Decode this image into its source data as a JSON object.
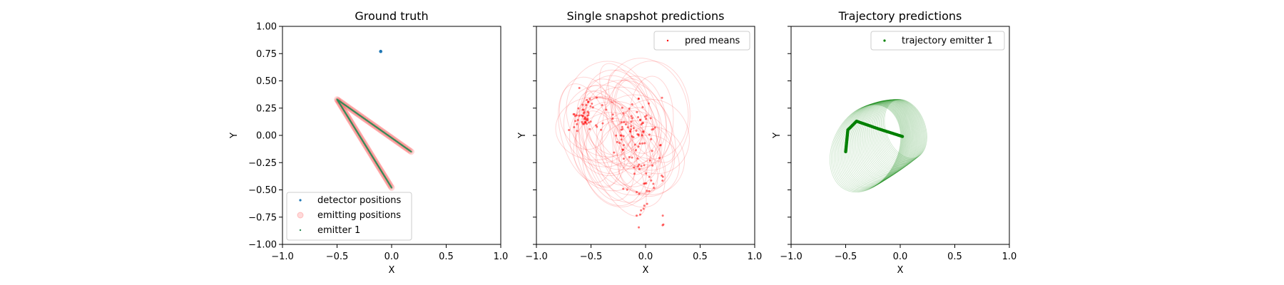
{
  "colors": {
    "detector": "#1f77b4",
    "emitting": "#ff6b6b",
    "emitter1_gt": "#2e8b57",
    "pred": "#ff0000",
    "trajectory": "#008000"
  },
  "chart_data": [
    {
      "type": "scatter",
      "title": "Ground truth",
      "xlabel": "X",
      "ylabel": "Y",
      "xlim": [
        -1.0,
        1.0
      ],
      "ylim": [
        -1.0,
        1.0
      ],
      "xticks": [
        "−1.0",
        "−0.5",
        "0.0",
        "0.5",
        "1.0"
      ],
      "yticks": [
        "1.00",
        "0.75",
        "0.50",
        "0.25",
        "0.00",
        "−0.25",
        "−0.50",
        "−0.75",
        "−1.00"
      ],
      "legend_position": "lower-left",
      "series": [
        {
          "name": "detector positions",
          "points": [
            [
              -0.1,
              0.77
            ]
          ]
        },
        {
          "name": "emitting positions",
          "path": [
            [
              0.0,
              -0.48
            ],
            [
              -0.5,
              0.33
            ],
            [
              0.18,
              -0.15
            ]
          ]
        },
        {
          "name": "emitter 1",
          "path": [
            [
              0.0,
              -0.48
            ],
            [
              -0.5,
              0.33
            ],
            [
              0.18,
              -0.15
            ]
          ]
        }
      ]
    },
    {
      "type": "scatter",
      "title": "Single snapshot predictions",
      "xlabel": "X",
      "ylabel": "Y",
      "xlim": [
        -1.0,
        1.0
      ],
      "ylim": [
        -1.0,
        1.0
      ],
      "xticks": [
        "−1.0",
        "−0.5",
        "0.0",
        "0.5",
        "1.0"
      ],
      "legend_position": "upper-right",
      "series": [
        {
          "name": "pred means",
          "clusters": [
            {
              "center": [
                -0.57,
                0.17
              ],
              "spread": [
                0.07,
                0.08
              ],
              "count": 55
            },
            {
              "center": [
                -0.1,
                0.05
              ],
              "spread": [
                0.13,
                0.16
              ],
              "count": 70
            },
            {
              "center": [
                0.0,
                -0.35
              ],
              "spread": [
                0.09,
                0.2
              ],
              "count": 45
            }
          ]
        }
      ],
      "ellipse_count": 40
    },
    {
      "type": "scatter",
      "title": "Trajectory predictions",
      "xlabel": "X",
      "ylabel": "Y",
      "xlim": [
        -1.0,
        1.0
      ],
      "ylim": [
        -1.0,
        1.0
      ],
      "xticks": [
        "−1.0",
        "−0.5",
        "0.0",
        "0.5",
        "1.0"
      ],
      "legend_position": "upper-right",
      "series": [
        {
          "name": "trajectory emitter 1",
          "path": [
            [
              -0.5,
              -0.15
            ],
            [
              -0.48,
              0.05
            ],
            [
              -0.4,
              0.13
            ],
            [
              -0.2,
              0.06
            ],
            [
              0.02,
              -0.01
            ]
          ]
        }
      ],
      "ellipse_count": 45
    }
  ]
}
